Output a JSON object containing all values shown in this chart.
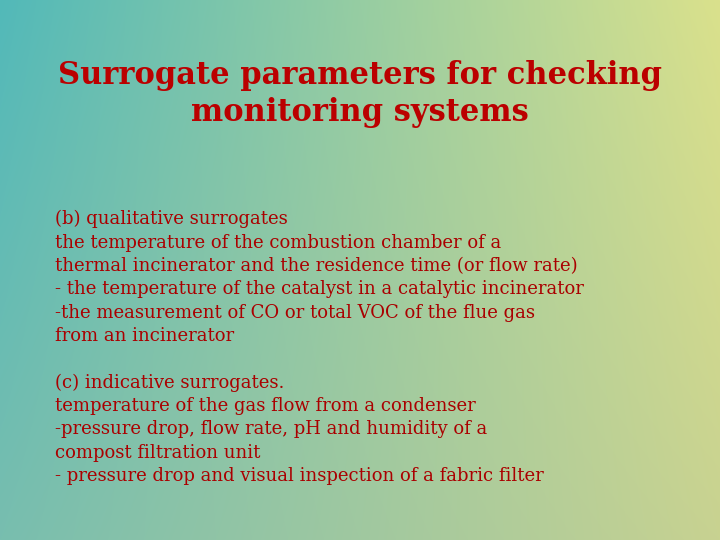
{
  "title_line1": "Surrogate parameters for checking",
  "title_line2": "monitoring systems",
  "title_color": "#bb0000",
  "title_fontsize": 22,
  "text_color": "#aa0000",
  "text_fontsize": 13,
  "body_lines": [
    "(b) qualitative surrogates",
    "the temperature of the combustion chamber of a",
    "thermal incinerator and the residence time (or flow rate)",
    "- the temperature of the catalyst in a catalytic incinerator",
    "-the measurement of CO or total VOC of the flue gas",
    "from an incinerator",
    "",
    "(c) indicative surrogates.",
    "temperature of the gas flow from a condenser",
    "-pressure drop, flow rate, pH and humidity of a",
    "compost filtration unit",
    "- pressure drop and visual inspection of a fabric filter"
  ],
  "tl_r": 82,
  "tl_g": 185,
  "tl_b": 185,
  "tr_r": 218,
  "tr_g": 225,
  "tr_b": 140,
  "bl_r": 120,
  "bl_g": 190,
  "bl_b": 175,
  "br_r": 200,
  "br_g": 210,
  "br_b": 145
}
